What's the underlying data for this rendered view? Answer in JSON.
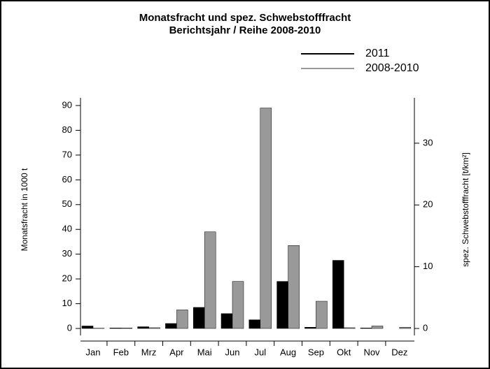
{
  "chart_data": {
    "type": "bar",
    "title": "Monatsfracht und spez. Schwebstofffracht",
    "subtitle": "Berichtsjahr / Reihe 2008-2010",
    "ylabel": "Monatsfracht in 1000 t",
    "y2label": "spez. Schwebstofffracht [t/km²]",
    "categories": [
      "Jan",
      "Feb",
      "Mrz",
      "Apr",
      "Mai",
      "Jun",
      "Jul",
      "Aug",
      "Sep",
      "Okt",
      "Nov",
      "Dez"
    ],
    "series": [
      {
        "name": "2011",
        "color": "#000000",
        "values": [
          1,
          0.2,
          0.7,
          2,
          8.5,
          6,
          3.5,
          19,
          0.5,
          27.5,
          0.2,
          0
        ]
      },
      {
        "name": "2008-2010",
        "color": "#999999",
        "values": [
          0.1,
          0.2,
          0.3,
          7.5,
          39,
          19,
          89,
          33.5,
          11,
          0.3,
          1,
          0.5
        ]
      }
    ],
    "ylim": [
      0,
      90
    ],
    "yticks": [
      0,
      10,
      20,
      30,
      40,
      50,
      60,
      70,
      80,
      90
    ],
    "y2lim": [
      0,
      36.1
    ],
    "y2ticks": [
      0,
      10,
      20,
      30
    ],
    "legend": "upper right"
  }
}
